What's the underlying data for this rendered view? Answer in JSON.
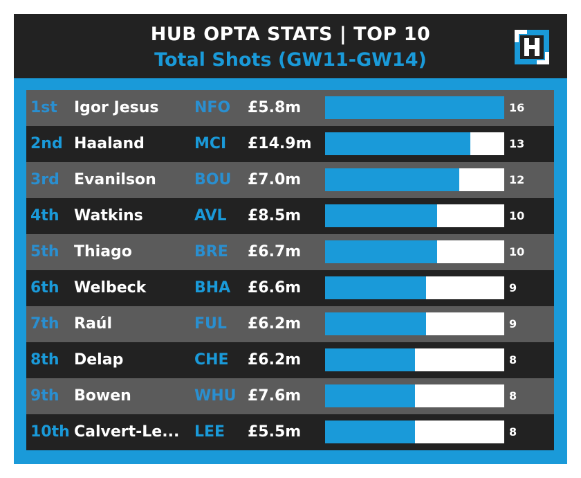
{
  "header": {
    "title": "HUB OPTA STATS | TOP 10",
    "subtitle": "Total Shots (GW11-GW14)",
    "logo_icon": "hub-logo-icon"
  },
  "colors": {
    "accent": "#1a9ad9",
    "header_bg": "#222222",
    "row_dark": "#222222",
    "row_grey": "#5b5b5b",
    "track": "#ffffff"
  },
  "chart_data": {
    "type": "bar",
    "orientation": "horizontal",
    "xlim": [
      0,
      16
    ],
    "rows": [
      {
        "rank": "1st",
        "player": "Igor Jesus",
        "team": "NFO",
        "price": "£5.8m",
        "value": 16
      },
      {
        "rank": "2nd",
        "player": "Haaland",
        "team": "MCI",
        "price": "£14.9m",
        "value": 13
      },
      {
        "rank": "3rd",
        "player": "Evanilson",
        "team": "BOU",
        "price": "£7.0m",
        "value": 12
      },
      {
        "rank": "4th",
        "player": "Watkins",
        "team": "AVL",
        "price": "£8.5m",
        "value": 10
      },
      {
        "rank": "5th",
        "player": "Thiago",
        "team": "BRE",
        "price": "£6.7m",
        "value": 10
      },
      {
        "rank": "6th",
        "player": "Welbeck",
        "team": "BHA",
        "price": "£6.6m",
        "value": 9
      },
      {
        "rank": "7th",
        "player": "Raúl",
        "team": "FUL",
        "price": "£6.2m",
        "value": 9
      },
      {
        "rank": "8th",
        "player": "Delap",
        "team": "CHE",
        "price": "£6.2m",
        "value": 8
      },
      {
        "rank": "9th",
        "player": "Bowen",
        "team": "WHU",
        "price": "£7.6m",
        "value": 8
      },
      {
        "rank": "10th",
        "player": "Calvert-Le...",
        "team": "LEE",
        "price": "£5.5m",
        "value": 8
      }
    ]
  }
}
